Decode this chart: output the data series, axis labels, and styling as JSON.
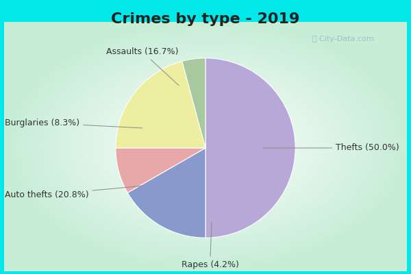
{
  "title": "Crimes by type - 2019",
  "slices": [
    {
      "label": "Thefts (50.0%)",
      "value": 50.0,
      "color": "#b8a8d8"
    },
    {
      "label": "Assaults (16.7%)",
      "value": 16.7,
      "color": "#8899cc"
    },
    {
      "label": "Burglaries (8.3%)",
      "value": 8.3,
      "color": "#e8a8a8"
    },
    {
      "label": "Auto thefts (20.8%)",
      "value": 20.8,
      "color": "#eeeea0"
    },
    {
      "label": "Rapes (4.2%)",
      "value": 4.2,
      "color": "#a8c8a0"
    }
  ],
  "bg_cyan": "#00e8e8",
  "bg_inner_color": "#c8ecd8",
  "title_fontsize": 16,
  "label_fontsize": 9,
  "title_color": "#222222",
  "watermark": "City-Data.com",
  "watermark_color": "#99b8c8"
}
